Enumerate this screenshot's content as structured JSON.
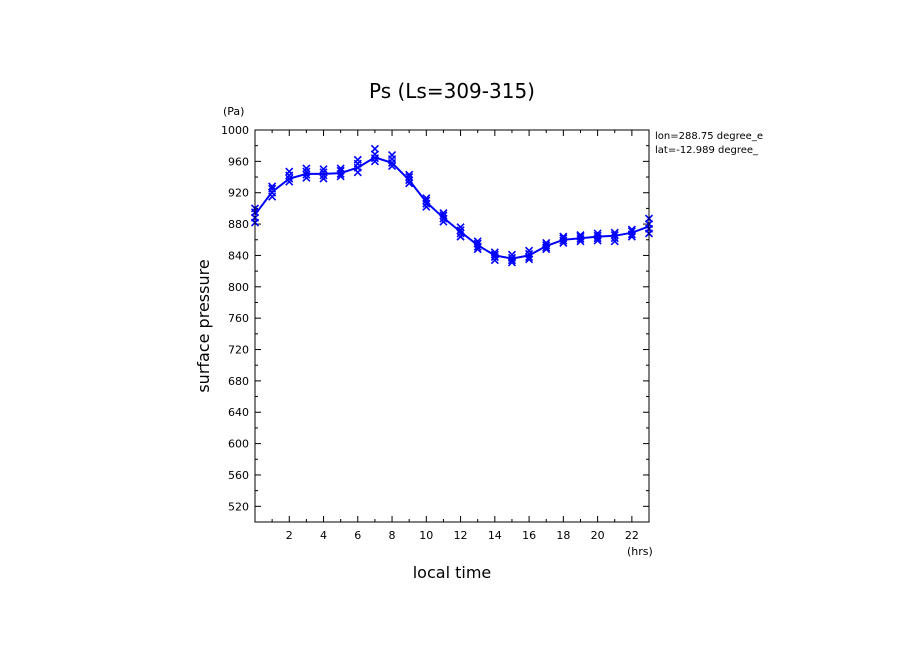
{
  "chart_data": {
    "type": "line",
    "title": "Ps (Ls=309-315)",
    "xlabel": "local time",
    "ylabel": "surface pressure",
    "xunit": "(hrs)",
    "yunit": "(Pa)",
    "annotations": [
      "lon=288.75 degree_e",
      "lat=-12.989 degree_"
    ],
    "xlim": [
      0,
      23
    ],
    "ylim": [
      500,
      1000
    ],
    "xticks": [
      2,
      4,
      6,
      8,
      10,
      12,
      14,
      16,
      18,
      20,
      22
    ],
    "yticks": [
      520,
      560,
      600,
      640,
      680,
      720,
      760,
      800,
      840,
      880,
      920,
      960,
      1000
    ],
    "grid": false,
    "color": "#0000ff",
    "series": [
      {
        "x": [
          0,
          1,
          2,
          3,
          4,
          5,
          6,
          7,
          8,
          9,
          10,
          11,
          12,
          13,
          14,
          15,
          16,
          17,
          18,
          19,
          20,
          21,
          22,
          23
        ],
        "values": [
          892,
          921,
          938,
          944,
          944,
          945,
          952,
          965,
          958,
          936,
          908,
          888,
          870,
          853,
          840,
          836,
          840,
          852,
          860,
          862,
          864,
          865,
          869,
          877
        ]
      }
    ],
    "samples": [
      [
        882,
        888,
        895,
        900
      ],
      [
        915,
        920,
        925,
        928
      ],
      [
        934,
        938,
        942,
        947
      ],
      [
        939,
        943,
        947,
        951
      ],
      [
        938,
        942,
        946,
        950
      ],
      [
        941,
        944,
        948,
        951
      ],
      [
        946,
        952,
        957,
        962
      ],
      [
        960,
        964,
        969,
        976
      ],
      [
        954,
        958,
        963,
        968
      ],
      [
        932,
        936,
        940,
        943
      ],
      [
        902,
        906,
        910,
        913
      ],
      [
        883,
        887,
        891,
        894
      ],
      [
        864,
        868,
        872,
        876
      ],
      [
        848,
        851,
        855,
        858
      ],
      [
        834,
        838,
        841,
        844
      ],
      [
        831,
        834,
        837,
        841
      ],
      [
        835,
        838,
        842,
        846
      ],
      [
        848,
        850,
        853,
        856
      ],
      [
        856,
        859,
        862,
        864
      ],
      [
        858,
        861,
        864,
        866
      ],
      [
        859,
        862,
        865,
        868
      ],
      [
        858,
        862,
        866,
        869
      ],
      [
        864,
        867,
        871,
        873
      ],
      [
        868,
        874,
        880,
        887
      ]
    ]
  }
}
